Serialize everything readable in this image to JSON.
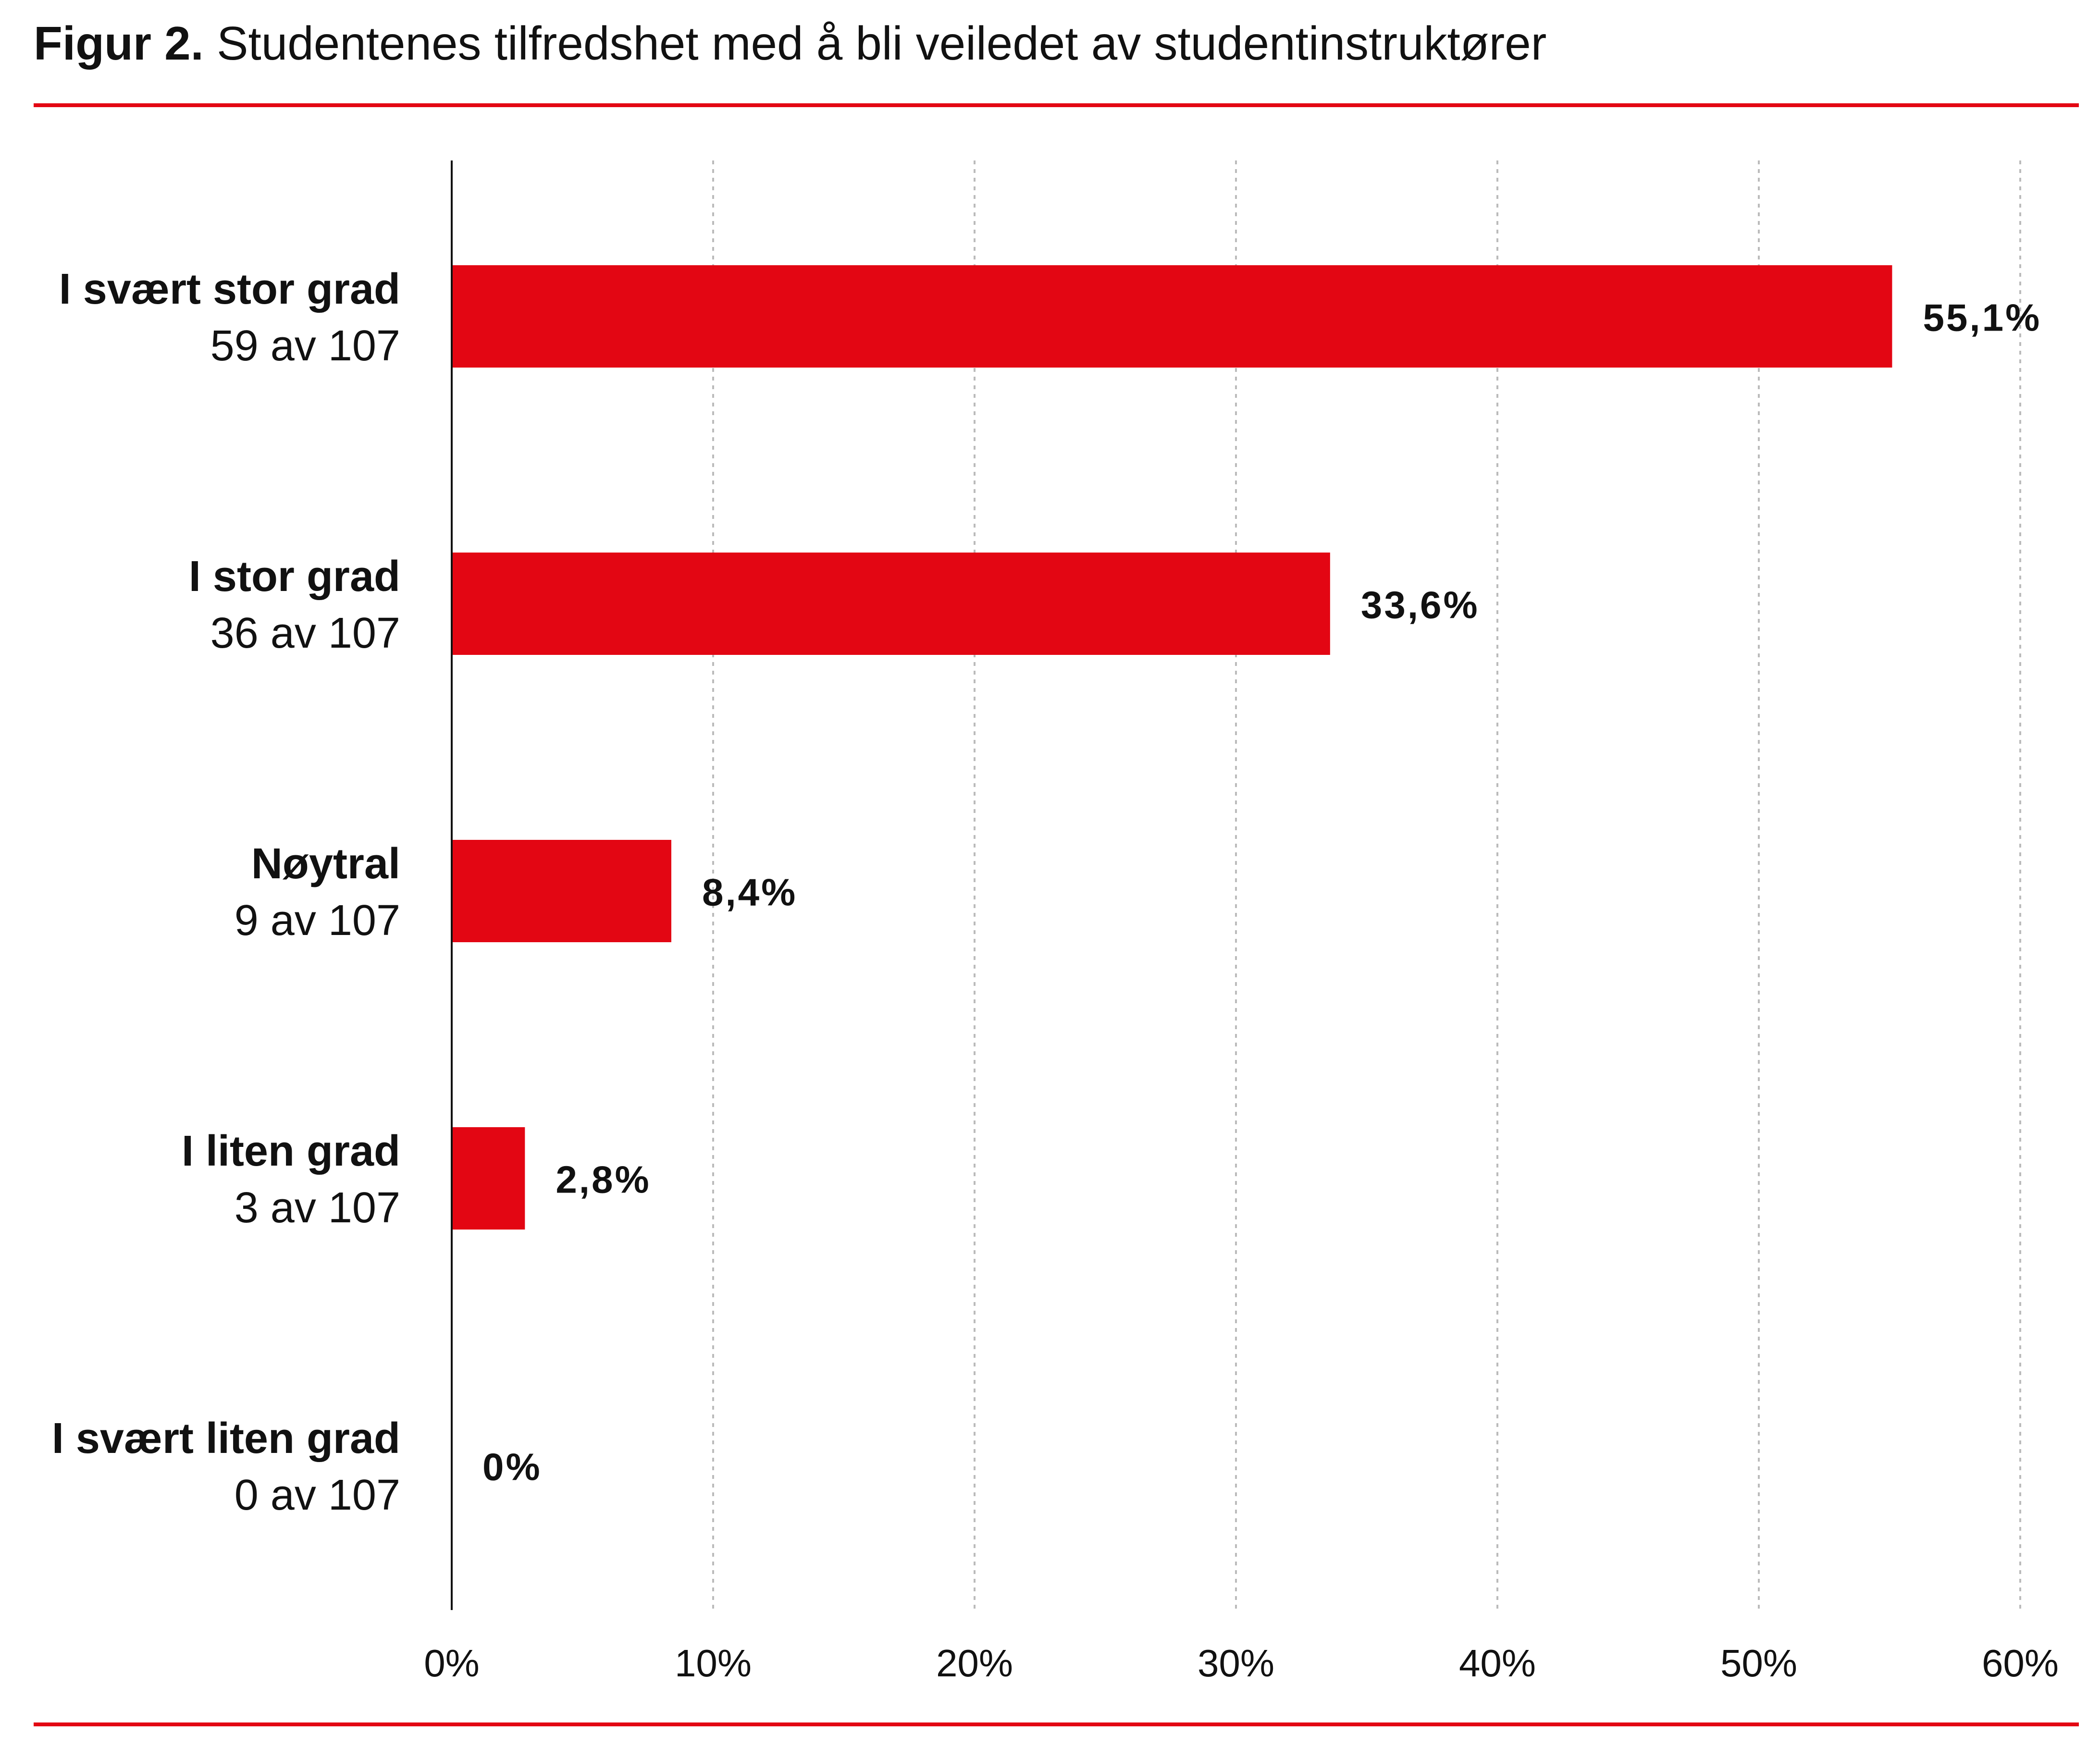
{
  "title": {
    "prefix": "Figur 2.",
    "text": "Studentenes tilfredshet med å bli veiledet av studentinstruktører"
  },
  "colors": {
    "bar": "#E30613",
    "rule": "#E30613",
    "grid": "#bbbbbb",
    "axis": "#111111"
  },
  "chart_data": {
    "type": "bar",
    "orientation": "horizontal",
    "title": "Figur 2. Studentenes tilfredshet med å bli veiledet av studentinstruktører",
    "categories": [
      "I svært stor grad",
      "I stor grad",
      "Nøytral",
      "I liten grad",
      "I svært liten grad"
    ],
    "counts": [
      "59 av 107",
      "36 av 107",
      "9 av 107",
      "3 av 107",
      "0 av 107"
    ],
    "values": [
      55.1,
      33.6,
      8.4,
      2.8,
      0
    ],
    "data_labels": [
      "55,1%",
      "33,6%",
      "8,4%",
      "2,8%",
      "0%"
    ],
    "xlim": [
      0,
      60
    ],
    "xticks": [
      0,
      10,
      20,
      30,
      40,
      50,
      60
    ],
    "xtick_labels": [
      "0%",
      "10%",
      "20%",
      "30%",
      "40%",
      "50%",
      "60%"
    ],
    "grid": "vertical dotted",
    "legend": "none"
  }
}
